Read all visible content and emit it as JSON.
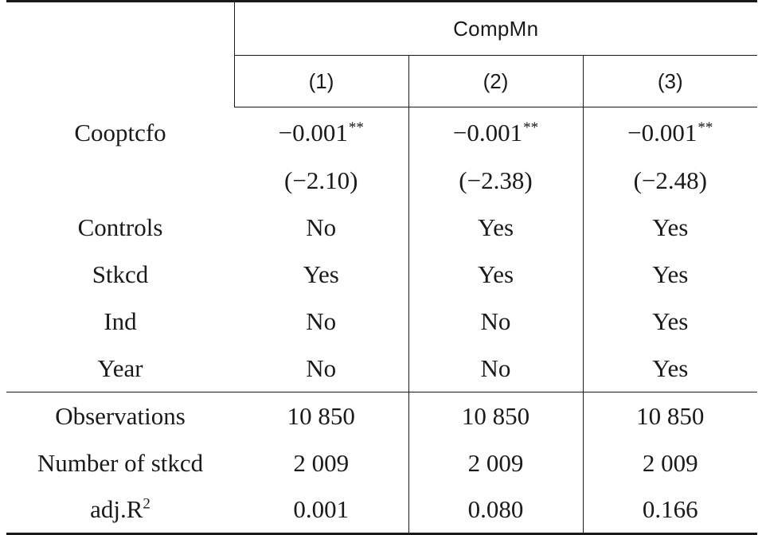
{
  "table": {
    "group_header": "CompMn",
    "columns": [
      "(1)",
      "(2)",
      "(3)"
    ],
    "rows": [
      {
        "label": "Cooptcfo",
        "values": [
          "−0.001",
          "−0.001",
          "−0.001"
        ],
        "stars": [
          "**",
          "**",
          "**"
        ]
      },
      {
        "label": "",
        "values": [
          "(−2.10)",
          "(−2.38)",
          "(−2.48)"
        ]
      },
      {
        "label": "Controls",
        "values": [
          "No",
          "Yes",
          "Yes"
        ]
      },
      {
        "label": "Stkcd",
        "values": [
          "Yes",
          "Yes",
          "Yes"
        ]
      },
      {
        "label": "Ind",
        "values": [
          "No",
          "No",
          "Yes"
        ]
      },
      {
        "label": "Year",
        "values": [
          "No",
          "No",
          "Yes"
        ]
      },
      {
        "label": "Observations",
        "values": [
          "10 850",
          "10 850",
          "10 850"
        ]
      },
      {
        "label": "Number of stkcd",
        "values": [
          "2 009",
          "2 009",
          "2 009"
        ]
      },
      {
        "label": "adj.R",
        "label_sup": "2",
        "values": [
          "0.001",
          "0.080",
          "0.166"
        ]
      }
    ]
  }
}
